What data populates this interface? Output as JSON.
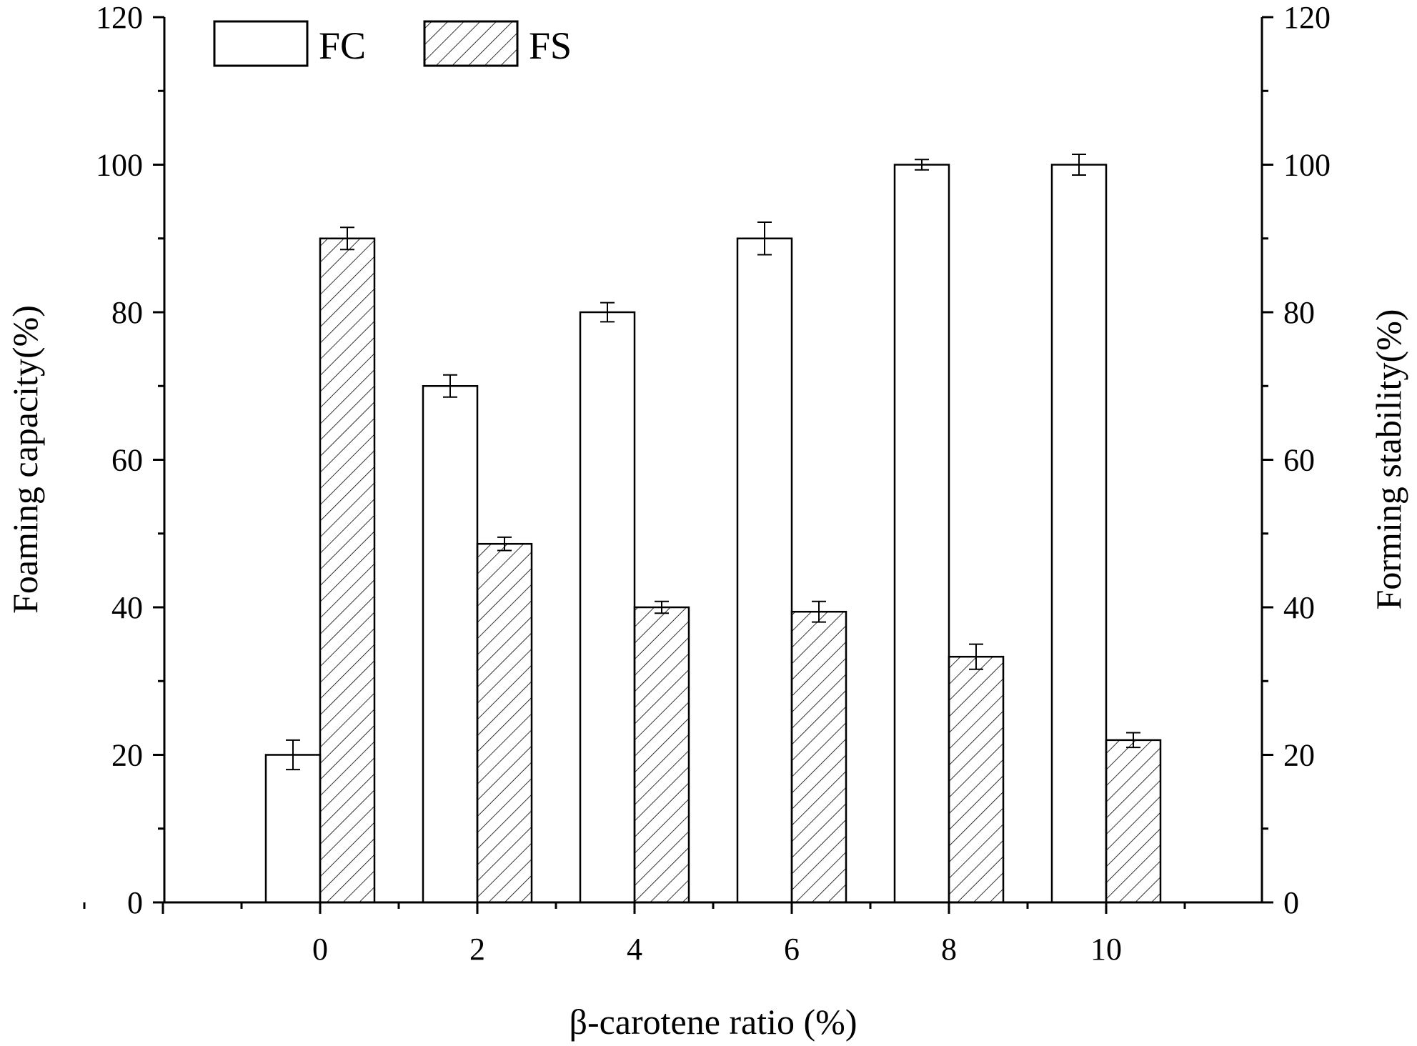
{
  "chart_data": {
    "type": "bar",
    "categories": [
      "0",
      "2",
      "4",
      "6",
      "8",
      "10"
    ],
    "x_ticks": [
      "0",
      "2",
      "4",
      "6",
      "8",
      "10"
    ],
    "series": [
      {
        "name": "FC",
        "axis": "left",
        "pattern": "empty",
        "values": [
          20,
          70,
          80,
          90,
          100,
          100
        ],
        "errors": [
          2,
          1.5,
          1.3,
          2.2,
          0.7,
          1.4
        ]
      },
      {
        "name": "FS",
        "axis": "right",
        "pattern": "diagonal-hatch",
        "values": [
          90,
          48.6,
          40,
          39.4,
          33.3,
          22
        ],
        "errors": [
          1.5,
          0.9,
          0.8,
          1.4,
          1.7,
          1
        ]
      }
    ],
    "xlabel": "β-carotene ratio (%)",
    "ylabel_left": "Foaming capacity(%)",
    "ylabel_right": "Forming stability(%)",
    "ylim": [
      0,
      120
    ],
    "y_ticks": [
      "0",
      "20",
      "40",
      "60",
      "80",
      "100",
      "120"
    ],
    "legend": {
      "placement": "top-left",
      "entries": [
        "FC",
        "FS"
      ]
    },
    "grid": false,
    "colors": {
      "bar_fill": "#ffffff",
      "stroke": "#000000"
    }
  }
}
